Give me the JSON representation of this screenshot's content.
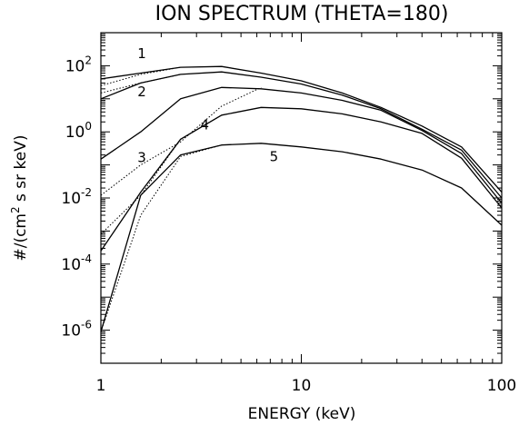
{
  "chart_data": {
    "type": "line",
    "title": "ION SPECTRUM (THETA=180)",
    "xlabel": "ENERGY (keV)",
    "ylabel": "#/(cm² s sr keV)",
    "ylabel_parts": {
      "prefix": "#/(cm",
      "sup": "2",
      "suffix": " s sr keV)"
    },
    "x_scale": "log",
    "y_scale": "log",
    "xlim": [
      1,
      100
    ],
    "ylim": [
      1e-07,
      1000.0
    ],
    "x_ticks": [
      {
        "value": 1,
        "label": "1"
      },
      {
        "value": 10,
        "label": "10"
      },
      {
        "value": 100,
        "label": "100"
      }
    ],
    "y_ticks": [
      {
        "value": 100,
        "base": "10",
        "exp": "2"
      },
      {
        "value": 1,
        "base": "10",
        "exp": "0"
      },
      {
        "value": 0.01,
        "base": "10",
        "exp": "-2"
      },
      {
        "value": 0.0001,
        "base": "10",
        "exp": "-4"
      },
      {
        "value": 1e-06,
        "base": "10",
        "exp": "-6"
      }
    ],
    "grid": false,
    "legend": "none",
    "solid_x": [
      1,
      1.58,
      2.5,
      4,
      6.3,
      10,
      16,
      25,
      40,
      63,
      100
    ],
    "series": [
      {
        "label": "1",
        "label_pos": [
          1.6,
          170
        ],
        "solid": [
          40,
          60,
          90,
          95,
          60,
          35,
          15,
          5.5,
          1.5,
          0.35,
          0.015
        ],
        "dotted": [
          25,
          55,
          90
        ]
      },
      {
        "label": "2",
        "label_pos": [
          1.6,
          12
        ],
        "solid": [
          10,
          30,
          55,
          65,
          45,
          28,
          13,
          5.0,
          1.2,
          0.28,
          0.01
        ],
        "dotted": [
          15,
          30,
          55
        ]
      },
      {
        "label": "3",
        "label_pos": [
          1.6,
          0.12
        ],
        "solid": [
          0.15,
          1.0,
          10,
          22,
          20,
          15,
          9,
          4.5,
          1.1,
          0.22,
          0.007
        ],
        "dotted": [
          0.012,
          0.1,
          0.5,
          6,
          22
        ]
      },
      {
        "label": "4",
        "label_pos": [
          3.3,
          1.2
        ],
        "solid": [
          0.00025,
          0.015,
          0.6,
          3.2,
          5.5,
          5.0,
          3.5,
          2.0,
          0.9,
          0.16,
          0.005
        ],
        "dotted": [
          0.0008,
          0.012,
          0.6,
          3.2
        ]
      },
      {
        "label": "5",
        "label_pos": [
          7.3,
          0.13
        ],
        "solid": [
          9e-07,
          0.012,
          0.2,
          0.4,
          0.45,
          0.35,
          0.25,
          0.15,
          0.07,
          0.02,
          0.0015
        ],
        "dotted": [
          9e-07,
          0.003,
          0.18,
          0.4
        ]
      }
    ]
  }
}
